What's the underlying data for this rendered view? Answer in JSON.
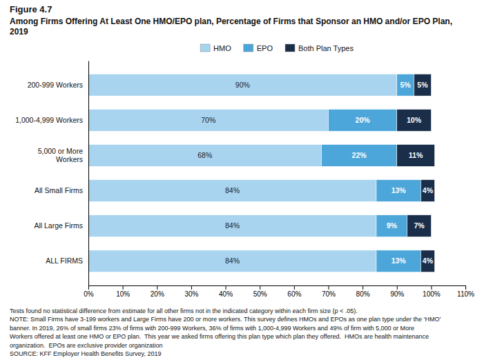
{
  "chart_data": {
    "type": "bar",
    "orientation": "horizontal",
    "stacked": true,
    "title": "Figure 4.7",
    "subtitle": "Among Firms Offering At Least One HMO/EPO plan, Percentage of Firms that Sponsor an HMO and/or EPO Plan, 2019",
    "categories": [
      "200-999 Workers",
      "1,000-4,999 Workers",
      "5,000 or More\nWorkers",
      "All Small Firms",
      "All Large Firms",
      "ALL FIRMS"
    ],
    "series": [
      {
        "name": "HMO",
        "color": "#a8d4f0",
        "values": [
          90,
          70,
          68,
          84,
          84,
          84
        ],
        "value_labels": [
          "90%",
          "70%",
          "68%",
          "84%",
          "84%",
          "84%"
        ]
      },
      {
        "name": "EPO",
        "color": "#4da6d9",
        "values": [
          5,
          20,
          22,
          13,
          9,
          13
        ],
        "value_labels": [
          "5%",
          "20%",
          "22%",
          "13%",
          "9%",
          "13%"
        ]
      },
      {
        "name": "Both Plan Types",
        "color": "#1a2e4a",
        "values": [
          5,
          10,
          11,
          4,
          7,
          4
        ],
        "value_labels": [
          "5%",
          "10%",
          "11%",
          "4%",
          "7%",
          "4%"
        ]
      }
    ],
    "data_labels": true,
    "xlim": [
      0,
      110
    ],
    "xticks": [
      {
        "value": 0,
        "label": "0%"
      },
      {
        "value": 10,
        "label": "10%"
      },
      {
        "value": 20,
        "label": "20%"
      },
      {
        "value": 30,
        "label": "30%"
      },
      {
        "value": 40,
        "label": "40%"
      },
      {
        "value": 50,
        "label": "50%"
      },
      {
        "value": 60,
        "label": "60%"
      },
      {
        "value": 70,
        "label": "70%"
      },
      {
        "value": 80,
        "label": "80%"
      },
      {
        "value": 90,
        "label": "90%"
      },
      {
        "value": 100,
        "label": "100%"
      },
      {
        "value": 110,
        "label": "110%"
      }
    ],
    "grid": false,
    "legend": "top",
    "annotations": [
      "Tests found no statistical difference from estimate for all other firms not in the indicated category within each firm size (p < .05).",
      "NOTE: Small Firms have 3-199 workers and Large Firms have 200 or more workers. This survey defines HMOs and EPOs as one plan type under the ‘HMO’",
      "banner. In 2019, 26% of small firms 23% of firms with 200-999 Workers, 36% of firms with 1,000-4,999 Workers and 49% of firm with 5,000 or More",
      "Workers offered at least one HMO or EPO plan.  This year we asked firms offering this plan type which plan they offered.  HMOs are health maintenance",
      "organization.  EPOs are exclusive provider organization",
      "SOURCE: KFF Employer Health Benefits Survey, 2019"
    ]
  }
}
